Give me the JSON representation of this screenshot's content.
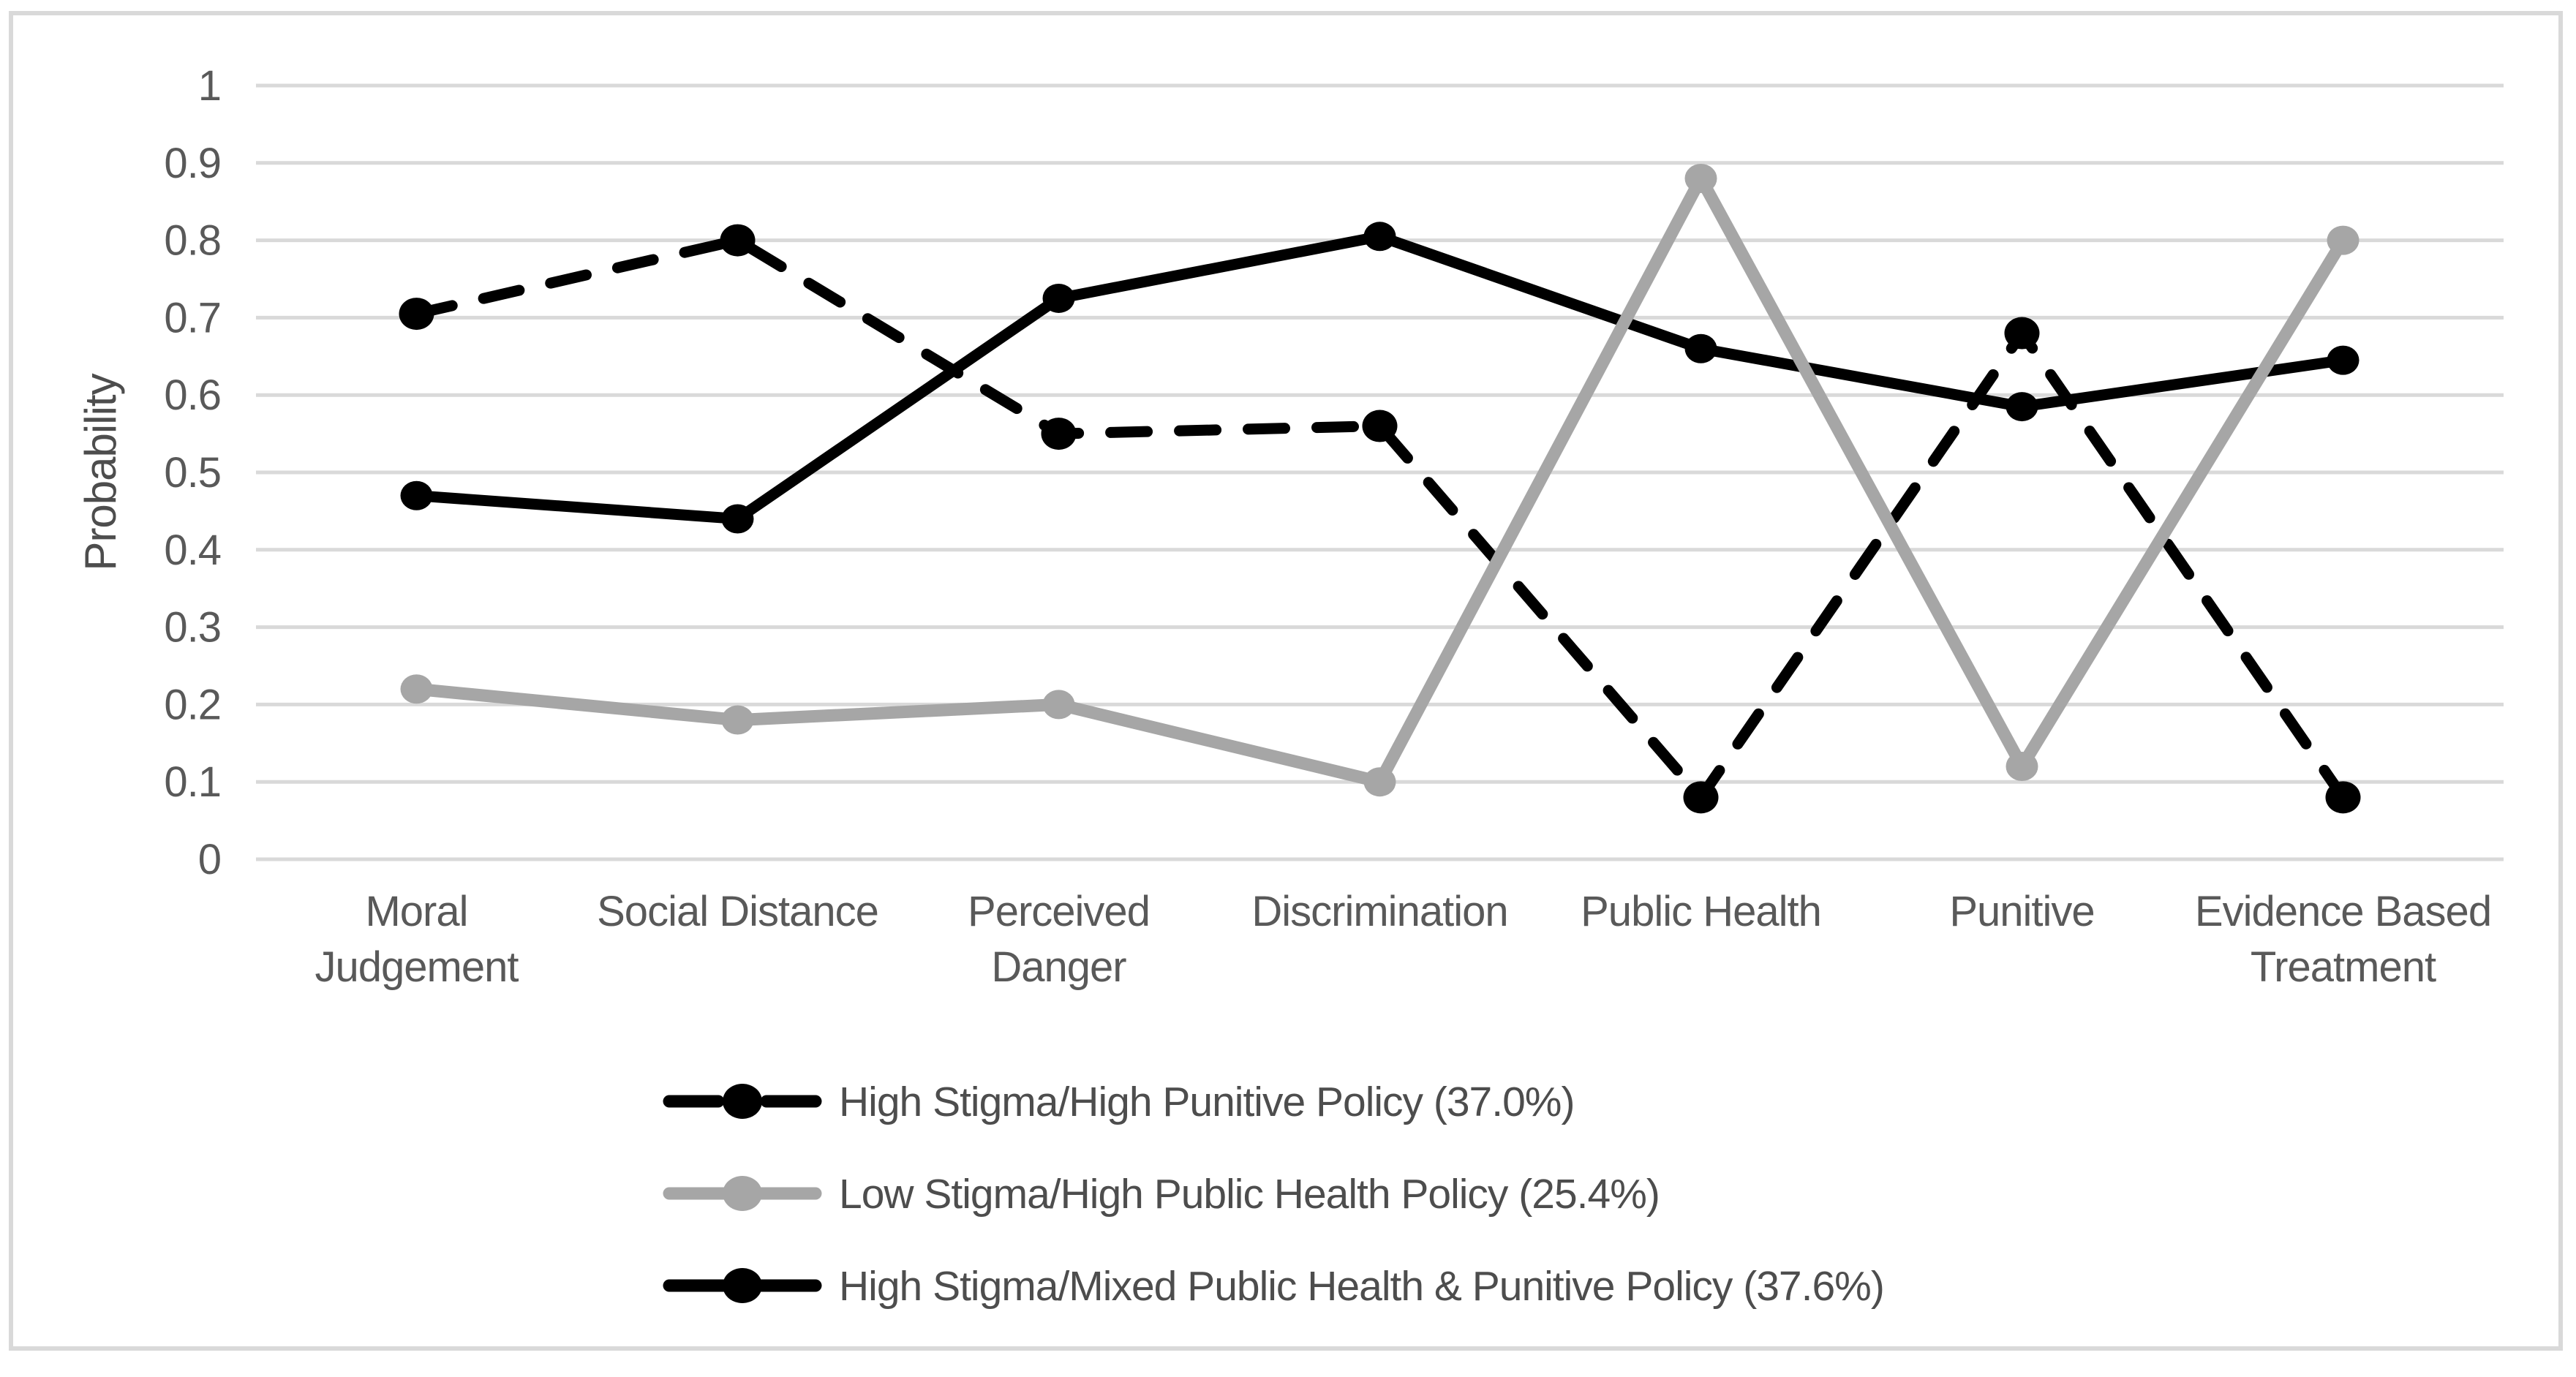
{
  "colors": {
    "background": "#FFFFFF",
    "border": "#D9D9D9",
    "gridline": "#D9D9D9",
    "axis_text": "#595959",
    "series_black": "#000000",
    "series_gray": "#A6A6A6"
  },
  "chart_data": {
    "type": "line",
    "title": "",
    "xlabel": "",
    "ylabel": "Probability",
    "ylim": [
      0,
      1
    ],
    "ytick_step": 0.1,
    "yticks": [
      "1",
      "0.9",
      "0.8",
      "0.7",
      "0.6",
      "0.5",
      "0.4",
      "0.3",
      "0.2",
      "0.1",
      "0"
    ],
    "grid": "horizontal",
    "legend_position": "bottom-left",
    "categories": [
      "Moral Judgement",
      "Social Distance",
      "Perceived Danger",
      "Discrimination",
      "Public Health",
      "Punitive",
      "Evidence Based Treatment"
    ],
    "xtick_lines": [
      [
        "Moral",
        "Judgement"
      ],
      [
        "Social Distance"
      ],
      [
        "Perceived",
        "Danger"
      ],
      [
        "Discrimination"
      ],
      [
        "Public Health"
      ],
      [
        "Punitive"
      ],
      [
        "Evidence Based",
        "Treatment"
      ]
    ],
    "series": [
      {
        "name": "High Stigma/High Punitive Policy  (37.0%)",
        "style": "dashed",
        "color": "#000000",
        "values": [
          0.705,
          0.8,
          0.55,
          0.56,
          0.08,
          0.68,
          0.08
        ]
      },
      {
        "name": "Low Stigma/High Public Health Policy (25.4%)",
        "style": "solid",
        "color": "#A6A6A6",
        "values": [
          0.22,
          0.18,
          0.2,
          0.1,
          0.88,
          0.12,
          0.8
        ]
      },
      {
        "name": "High Stigma/Mixed Public Health & Punitive Policy (37.6%)",
        "style": "solid",
        "color": "#000000",
        "values": [
          0.47,
          0.44,
          0.725,
          0.805,
          0.66,
          0.585,
          0.645
        ]
      }
    ]
  }
}
